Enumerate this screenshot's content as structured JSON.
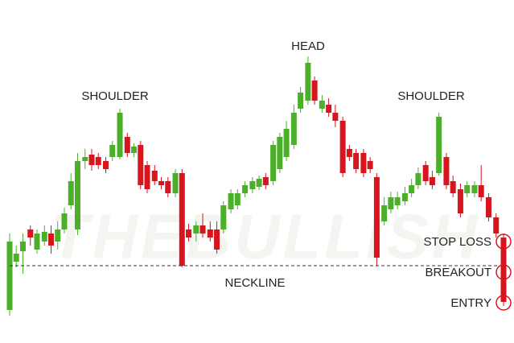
{
  "diagram": {
    "watermark": "THEBULLISH",
    "labels": {
      "left_shoulder": "SHOULDER",
      "head": "HEAD",
      "right_shoulder": "SHOULDER",
      "neckline": "NECKLINE",
      "stop_loss": "STOP LOSS",
      "breakout": "BREAKOUT",
      "entry": "ENTRY"
    }
  }
}
